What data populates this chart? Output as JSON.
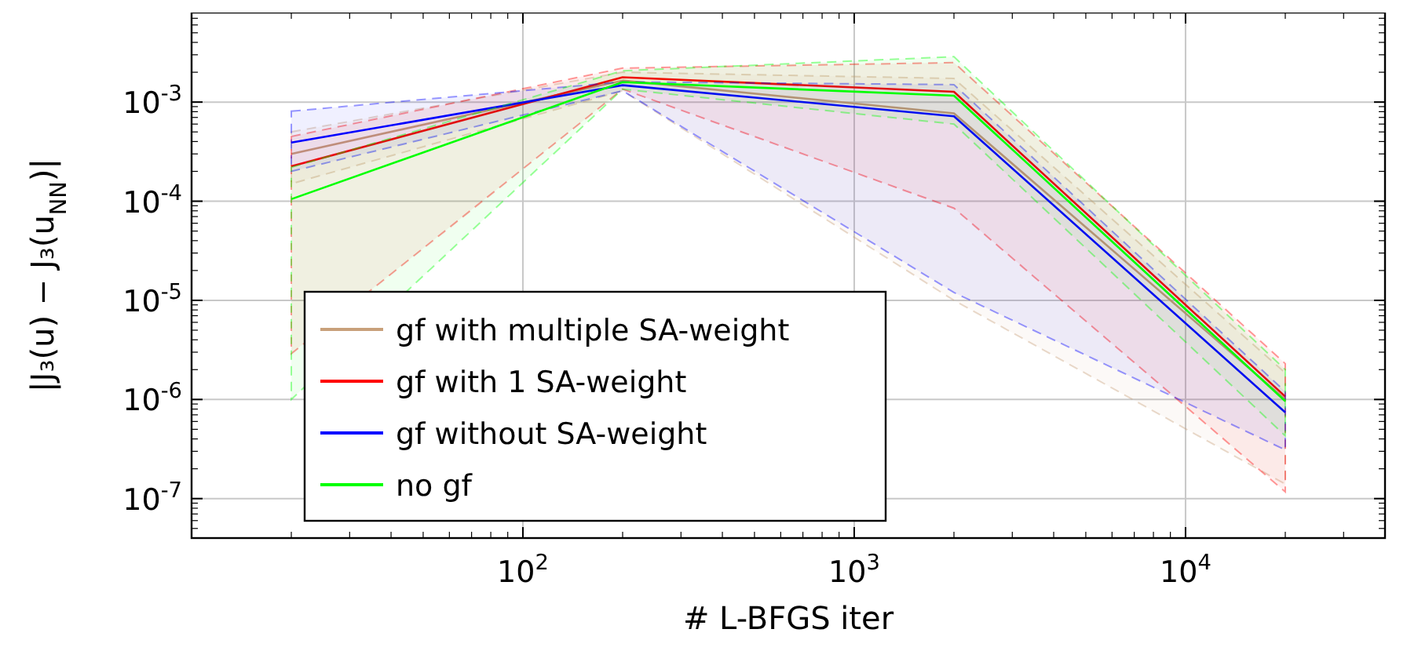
{
  "chart_data": {
    "type": "line",
    "xlabel": "# L-BFGS iter",
    "ylabel": "|J₃(u) − J₃(u$_{NN}$)|",
    "log": "xy",
    "grid": true,
    "legend": "bottom left",
    "x": [
      20,
      200,
      2000,
      20000
    ],
    "xlim": [
      10,
      40000
    ],
    "xticks": [
      {
        "value": 100,
        "label": "10$^{2}$"
      },
      {
        "value": 1000,
        "label": "10$^{3}$"
      },
      {
        "value": 10000,
        "label": "10$^{4}$"
      }
    ],
    "ylim": [
      4e-08,
      0.008
    ],
    "yticks": [
      {
        "value": 1e-07,
        "label": "10$^{-7}$"
      },
      {
        "value": 1e-06,
        "label": "10$^{-6}$"
      },
      {
        "value": 1e-05,
        "label": "10$^{-5}$"
      },
      {
        "value": 0.0001,
        "label": "10$^{-4}$"
      },
      {
        "value": 0.001,
        "label": "10$^{-3}$"
      }
    ],
    "series": [
      {
        "name": "gf with multiple SA-weight",
        "color": "#c8a07a",
        "values": [
          0.0003,
          0.00165,
          0.00077,
          1e-06
        ],
        "lower": [
          0.00015,
          0.0013,
          1e-05,
          1.4e-07
        ],
        "upper": [
          0.0005,
          0.002,
          0.00173,
          1.85e-06
        ]
      },
      {
        "name": "gf with 1 SA-weight",
        "color": "#ff0000",
        "values": [
          0.000225,
          0.00178,
          0.00127,
          1.07e-06
        ],
        "lower": [
          2.9e-06,
          0.00135,
          8.5e-05,
          1.17e-07
        ],
        "upper": [
          0.00045,
          0.0022,
          0.0025,
          2.3e-06
        ]
      },
      {
        "name": "gf without SA-weight",
        "color": "#0000ff",
        "values": [
          0.00039,
          0.00148,
          0.00072,
          7.4e-07
        ],
        "lower": [
          0.0002,
          0.0013,
          1.2e-05,
          3.1e-07
        ],
        "upper": [
          0.00081,
          0.0016,
          0.0015,
          1.2e-06
        ]
      },
      {
        "name": "no gf",
        "color": "#00ff00",
        "values": [
          0.000105,
          0.00159,
          0.00116,
          9.6e-07
        ],
        "lower": [
          1e-06,
          0.00135,
          0.0006,
          4.3e-07
        ],
        "upper": [
          0.00022,
          0.00207,
          0.00287,
          2e-06
        ]
      }
    ]
  }
}
